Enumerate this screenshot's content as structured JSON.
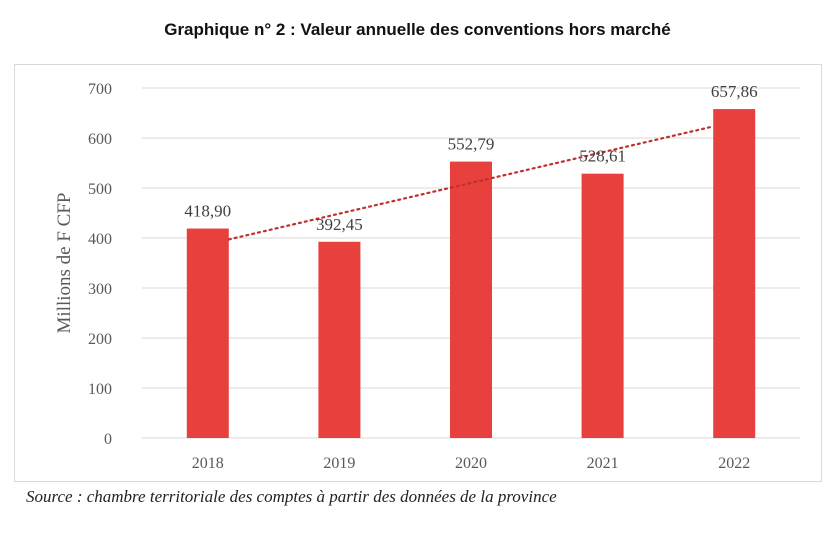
{
  "chart_data": {
    "type": "bar",
    "title": "Graphique n° 2 :  Valeur annuelle des conventions hors marché",
    "xlabel": "",
    "ylabel": "Millions de F CFP",
    "categories": [
      "2018",
      "2019",
      "2020",
      "2021",
      "2022"
    ],
    "values": [
      418.9,
      392.45,
      552.79,
      528.61,
      657.86
    ],
    "data_labels": [
      "418,90",
      "392,45",
      "552,79",
      "528,61",
      "657,86"
    ],
    "ylim": [
      0,
      700
    ],
    "yticks": [
      0,
      100,
      200,
      300,
      400,
      500,
      600,
      700
    ],
    "grid": true,
    "legend": "none",
    "trendline": {
      "type": "linear",
      "style": "dotted"
    },
    "colors": {
      "bar": "#e8403c",
      "trendline": "#c0302e",
      "grid": "#d9d9d9",
      "text": "#595959"
    }
  },
  "source": "Source : chambre territoriale des comptes à partir des données de la province"
}
